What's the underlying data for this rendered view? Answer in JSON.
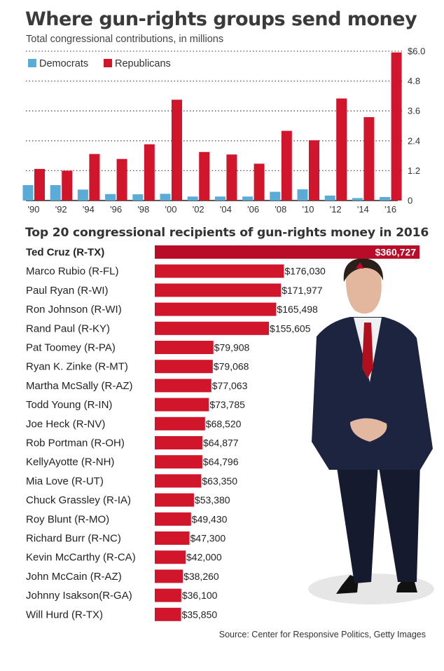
{
  "title": "Where gun-rights groups send money",
  "subtitle": "Total congressional contributions, in millions",
  "source": "Source: Center for Responsive Politics, Getty Images",
  "colors": {
    "democrats": "#5aabd5",
    "republicans": "#d1152b",
    "highlight": "#b90c28",
    "grid": "#555555"
  },
  "photo": {
    "icon": "senator-photo-icon"
  },
  "chart_data": [
    {
      "type": "bar",
      "title": "Where gun-rights groups send money",
      "subtitle": "Total congressional contributions, in millions",
      "categories": [
        "'90",
        "'92",
        "'94",
        "'96",
        "'98",
        "'00",
        "'02",
        "'04",
        "'06",
        "'08",
        "'10",
        "'12",
        "'14",
        "'16"
      ],
      "series": [
        {
          "name": "Democrats",
          "color": "#5aabd5",
          "values": [
            0.62,
            0.62,
            0.44,
            0.26,
            0.25,
            0.27,
            0.16,
            0.16,
            0.16,
            0.35,
            0.45,
            0.2,
            0.1,
            0.14
          ]
        },
        {
          "name": "Republicans",
          "color": "#d1152b",
          "values": [
            1.27,
            1.2,
            1.87,
            1.67,
            2.26,
            4.05,
            1.95,
            1.85,
            1.48,
            2.8,
            2.42,
            4.1,
            3.35,
            5.95
          ]
        }
      ],
      "yticks": [
        "$6.0",
        "4.8",
        "3.6",
        "2.4",
        "1.2",
        "0"
      ],
      "ylim": [
        0,
        6.0
      ],
      "legend": "top-left",
      "grid": true
    },
    {
      "type": "bar",
      "orientation": "horizontal",
      "title": "Top 20 congressional recipients of gun-rights money in 2016",
      "categories": [
        "Ted Cruz (R-TX)",
        "Marco Rubio (R-FL)",
        "Paul Ryan (R-WI)",
        "Ron Johnson (R-WI)",
        "Rand Paul (R-KY)",
        "Pat Toomey (R-PA)",
        "Ryan K. Zinke (R-MT)",
        "Martha McSally (R-AZ)",
        "Todd Young (R-IN)",
        "Joe Heck (R-NV)",
        "Rob Portman (R-OH)",
        "KellyAyotte (R-NH)",
        "Mia Love (R-UT)",
        "Chuck Grassley (R-IA)",
        "Roy Blunt (R-MO)",
        "Richard Burr (R-NC)",
        "Kevin McCarthy (R-CA)",
        "John McCain (R-AZ)",
        "Johnny  Isakson(R-GA)",
        "Will Hurd (R-TX)"
      ],
      "values": [
        360727,
        176030,
        171977,
        165498,
        155605,
        79908,
        79068,
        77063,
        73785,
        68520,
        64877,
        64796,
        63350,
        53380,
        49430,
        47300,
        42000,
        38260,
        36100,
        35850
      ],
      "labels": [
        "$360,727",
        "$176,030",
        "$171,977",
        "$165,498",
        "$155,605",
        "$79,908",
        "$79,068",
        "$77,063",
        "$73,785",
        "$68,520",
        "$64,877",
        "$64,796",
        "$63,350",
        "$53,380",
        "$49,430",
        "$47,300",
        "$42,000",
        "$38,260",
        "$36,100",
        "$35,850"
      ],
      "highlight_index": 0,
      "xlim": [
        0,
        360727
      ]
    }
  ]
}
